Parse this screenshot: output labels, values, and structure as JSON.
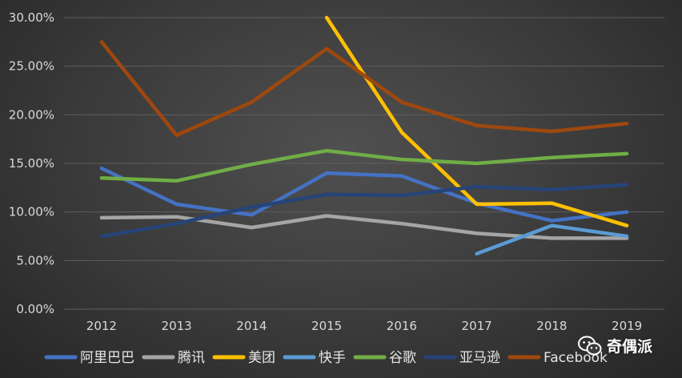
{
  "chart_data": {
    "type": "line",
    "title": "",
    "xlabel": "",
    "ylabel": "",
    "categories": [
      "2012",
      "2013",
      "2014",
      "2015",
      "2016",
      "2017",
      "2018",
      "2019"
    ],
    "ylim": [
      0,
      30
    ],
    "yticks": [
      0,
      5,
      10,
      15,
      20,
      25,
      30
    ],
    "ytick_labels": [
      "0.00%",
      "5.00%",
      "10.00%",
      "15.00%",
      "20.00%",
      "25.00%",
      "30.00%"
    ],
    "grid": true,
    "legend_position": "bottom",
    "series": [
      {
        "name": "阿里巴巴",
        "color": "#4472c4",
        "values": [
          14.5,
          10.8,
          9.7,
          14.0,
          13.7,
          10.9,
          9.1,
          10.0
        ]
      },
      {
        "name": "腾讯",
        "color": "#a5a5a5",
        "values": [
          9.4,
          9.5,
          8.4,
          9.6,
          8.8,
          7.8,
          7.3,
          7.3
        ]
      },
      {
        "name": "美团",
        "color": "#ffc000",
        "values": [
          null,
          null,
          null,
          30.0,
          18.2,
          10.8,
          10.9,
          8.6
        ]
      },
      {
        "name": "快手",
        "color": "#5b9bd5",
        "values": [
          null,
          null,
          null,
          null,
          null,
          5.7,
          8.6,
          7.5
        ]
      },
      {
        "name": "谷歌",
        "color": "#70ad47",
        "values": [
          13.5,
          13.2,
          14.9,
          16.3,
          15.4,
          15.0,
          15.6,
          16.0
        ]
      },
      {
        "name": "亚马逊",
        "color": "#264478",
        "values": [
          7.5,
          8.8,
          10.5,
          11.8,
          11.7,
          12.6,
          12.3,
          12.8
        ]
      },
      {
        "name": "Facebook",
        "color": "#9e480e",
        "values": [
          27.5,
          17.9,
          21.3,
          26.8,
          21.3,
          18.9,
          18.3,
          19.1
        ]
      }
    ]
  },
  "watermark": {
    "text": "奇偶派",
    "icon": "wechat-icon"
  }
}
